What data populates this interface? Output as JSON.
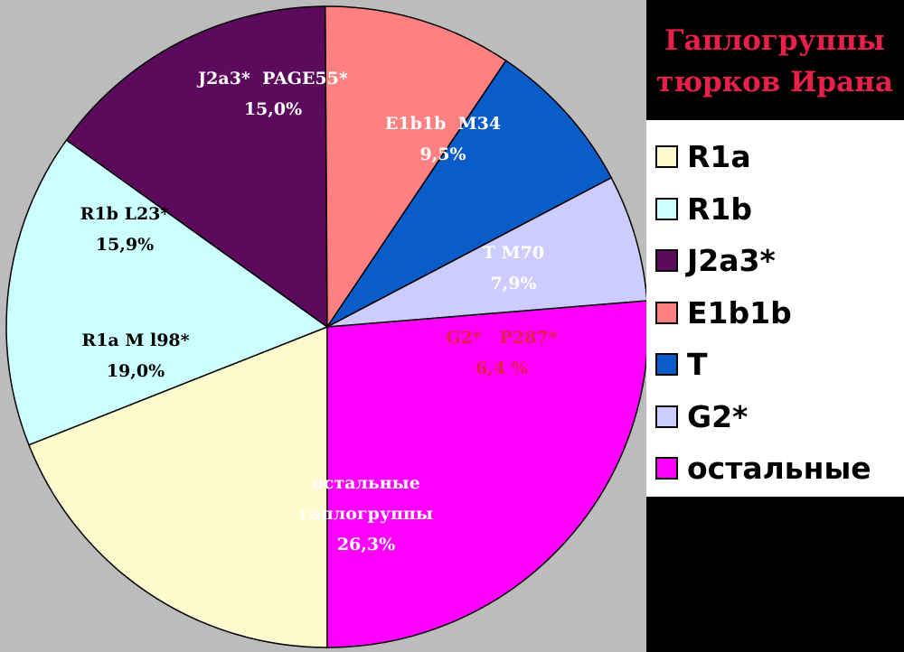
{
  "chart_data": {
    "type": "pie",
    "title_lines": [
      "Гаплогруппы",
      "тюрков Ирана"
    ],
    "slices": [
      {
        "legend": "R1a",
        "label_lines": [
          "R1a M l98*",
          "19,0%"
        ],
        "value": 19.0,
        "color": "#fffacd",
        "text_color": "#000000"
      },
      {
        "legend": "R1b",
        "label_lines": [
          "R1b L23*",
          "15,9%"
        ],
        "value": 15.9,
        "color": "#ccffff",
        "text_color": "#000000"
      },
      {
        "legend": "J2a3*",
        "label_lines": [
          "J2a3*  PAGE55*",
          "15,0%"
        ],
        "value": 15.0,
        "color": "#5c0a5c",
        "text_color": "#ffffff"
      },
      {
        "legend": "E1b1b",
        "label_lines": [
          "E1b1b  M34",
          "9,5%"
        ],
        "value": 9.5,
        "color": "#ff8080",
        "text_color": "#ffffff"
      },
      {
        "legend": "T",
        "label_lines": [
          "T M70",
          "7,9%"
        ],
        "value": 7.9,
        "color": "#0a5cc8",
        "text_color": "#ffffff"
      },
      {
        "legend": "G2*",
        "label_lines": [
          "G2*   P287*",
          "6,4 %"
        ],
        "value": 6.4,
        "color": "#ccccff",
        "text_color": "#e0204a"
      },
      {
        "legend": "остальные",
        "label_lines": [
          "остальные",
          "гаплогруппы",
          "26,3%"
        ],
        "value": 26.3,
        "color": "#ff00ff",
        "text_color": "#ffffff"
      }
    ],
    "start_angle_deg": 270,
    "direction": "counterclockwise",
    "legend_position": "right"
  }
}
